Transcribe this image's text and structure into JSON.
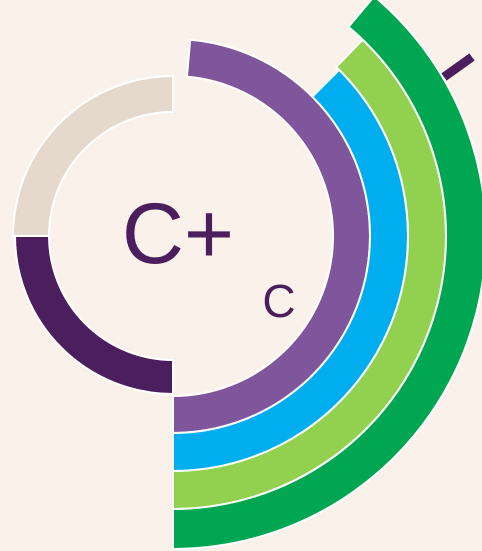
{
  "logo": {
    "main_text": "C+",
    "sub_text": "C"
  }
}
